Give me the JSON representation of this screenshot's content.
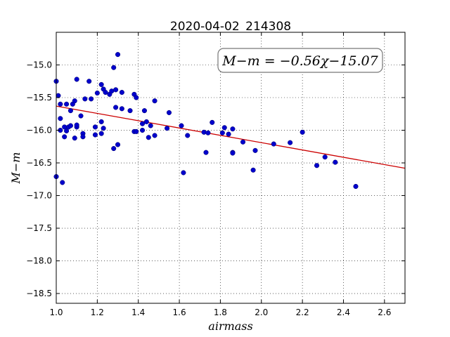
{
  "chart_data": {
    "type": "scatter",
    "title": "2020-04-02_214308",
    "xlabel": "airmass",
    "ylabel": "M−m",
    "xlim": [
      1.0,
      2.7
    ],
    "ylim": [
      -18.65,
      -14.5
    ],
    "y_inverted": true,
    "grid": true,
    "x_ticks": [
      1.0,
      1.2,
      1.4,
      1.6,
      1.8,
      2.0,
      2.2,
      2.4,
      2.6
    ],
    "x_tick_labels": [
      "1.0",
      "1.2",
      "1.4",
      "1.6",
      "1.8",
      "2.0",
      "2.2",
      "2.4",
      "2.6"
    ],
    "y_ticks": [
      -15.0,
      -15.5,
      -16.0,
      -16.5,
      -17.0,
      -17.5,
      -18.0,
      -18.5
    ],
    "y_tick_labels": [
      "−15.0",
      "−15.5",
      "−16.0",
      "−16.5",
      "−17.0",
      "−17.5",
      "−18.0",
      "−18.5"
    ],
    "annotation": "M−m = −0.56χ−15.07",
    "fit": {
      "slope": -0.56,
      "intercept": -15.07,
      "color": "#cc0000"
    },
    "marker_color": "#0000cc",
    "points": [
      {
        "x": 1.0,
        "y": -15.25
      },
      {
        "x": 1.0,
        "y": -16.71
      },
      {
        "x": 1.01,
        "y": -15.47
      },
      {
        "x": 1.02,
        "y": -15.6
      },
      {
        "x": 1.02,
        "y": -15.82
      },
      {
        "x": 1.02,
        "y": -16.0
      },
      {
        "x": 1.03,
        "y": -16.8
      },
      {
        "x": 1.04,
        "y": -15.95
      },
      {
        "x": 1.04,
        "y": -16.1
      },
      {
        "x": 1.05,
        "y": -15.6
      },
      {
        "x": 1.05,
        "y": -16.01
      },
      {
        "x": 1.06,
        "y": -15.95
      },
      {
        "x": 1.07,
        "y": -15.93
      },
      {
        "x": 1.07,
        "y": -15.7
      },
      {
        "x": 1.08,
        "y": -15.6
      },
      {
        "x": 1.09,
        "y": -15.55
      },
      {
        "x": 1.09,
        "y": -16.12
      },
      {
        "x": 1.1,
        "y": -15.95
      },
      {
        "x": 1.1,
        "y": -15.92
      },
      {
        "x": 1.1,
        "y": -15.22
      },
      {
        "x": 1.12,
        "y": -15.78
      },
      {
        "x": 1.13,
        "y": -16.05
      },
      {
        "x": 1.13,
        "y": -16.1
      },
      {
        "x": 1.14,
        "y": -15.52
      },
      {
        "x": 1.16,
        "y": -15.25
      },
      {
        "x": 1.17,
        "y": -15.52
      },
      {
        "x": 1.19,
        "y": -15.95
      },
      {
        "x": 1.19,
        "y": -16.07
      },
      {
        "x": 1.2,
        "y": -15.43
      },
      {
        "x": 1.22,
        "y": -15.3
      },
      {
        "x": 1.22,
        "y": -15.87
      },
      {
        "x": 1.22,
        "y": -16.05
      },
      {
        "x": 1.23,
        "y": -15.37
      },
      {
        "x": 1.23,
        "y": -15.97
      },
      {
        "x": 1.24,
        "y": -15.42
      },
      {
        "x": 1.26,
        "y": -15.45
      },
      {
        "x": 1.27,
        "y": -15.4
      },
      {
        "x": 1.28,
        "y": -15.04
      },
      {
        "x": 1.28,
        "y": -16.28
      },
      {
        "x": 1.29,
        "y": -15.38
      },
      {
        "x": 1.29,
        "y": -15.65
      },
      {
        "x": 1.3,
        "y": -16.22
      },
      {
        "x": 1.3,
        "y": -14.84
      },
      {
        "x": 1.32,
        "y": -15.42
      },
      {
        "x": 1.32,
        "y": -15.67
      },
      {
        "x": 1.36,
        "y": -15.7
      },
      {
        "x": 1.38,
        "y": -15.45
      },
      {
        "x": 1.38,
        "y": -16.02
      },
      {
        "x": 1.39,
        "y": -16.02
      },
      {
        "x": 1.39,
        "y": -15.5
      },
      {
        "x": 1.42,
        "y": -15.9
      },
      {
        "x": 1.42,
        "y": -16.0
      },
      {
        "x": 1.43,
        "y": -15.7
      },
      {
        "x": 1.44,
        "y": -15.87
      },
      {
        "x": 1.45,
        "y": -16.11
      },
      {
        "x": 1.46,
        "y": -15.93
      },
      {
        "x": 1.48,
        "y": -16.08
      },
      {
        "x": 1.48,
        "y": -15.55
      },
      {
        "x": 1.54,
        "y": -15.97
      },
      {
        "x": 1.55,
        "y": -15.73
      },
      {
        "x": 1.61,
        "y": -15.93
      },
      {
        "x": 1.62,
        "y": -16.65
      },
      {
        "x": 1.64,
        "y": -16.08
      },
      {
        "x": 1.72,
        "y": -16.03
      },
      {
        "x": 1.73,
        "y": -16.34
      },
      {
        "x": 1.74,
        "y": -16.04
      },
      {
        "x": 1.76,
        "y": -15.88
      },
      {
        "x": 1.81,
        "y": -16.04
      },
      {
        "x": 1.82,
        "y": -15.96
      },
      {
        "x": 1.84,
        "y": -16.06
      },
      {
        "x": 1.86,
        "y": -15.98
      },
      {
        "x": 1.86,
        "y": -16.34
      },
      {
        "x": 1.86,
        "y": -16.35
      },
      {
        "x": 1.91,
        "y": -16.18
      },
      {
        "x": 1.96,
        "y": -16.61
      },
      {
        "x": 1.97,
        "y": -16.31
      },
      {
        "x": 2.06,
        "y": -16.21
      },
      {
        "x": 2.14,
        "y": -16.19
      },
      {
        "x": 2.2,
        "y": -16.03
      },
      {
        "x": 2.27,
        "y": -16.54
      },
      {
        "x": 2.31,
        "y": -16.41
      },
      {
        "x": 2.36,
        "y": -16.49
      },
      {
        "x": 2.46,
        "y": -16.86
      }
    ]
  }
}
